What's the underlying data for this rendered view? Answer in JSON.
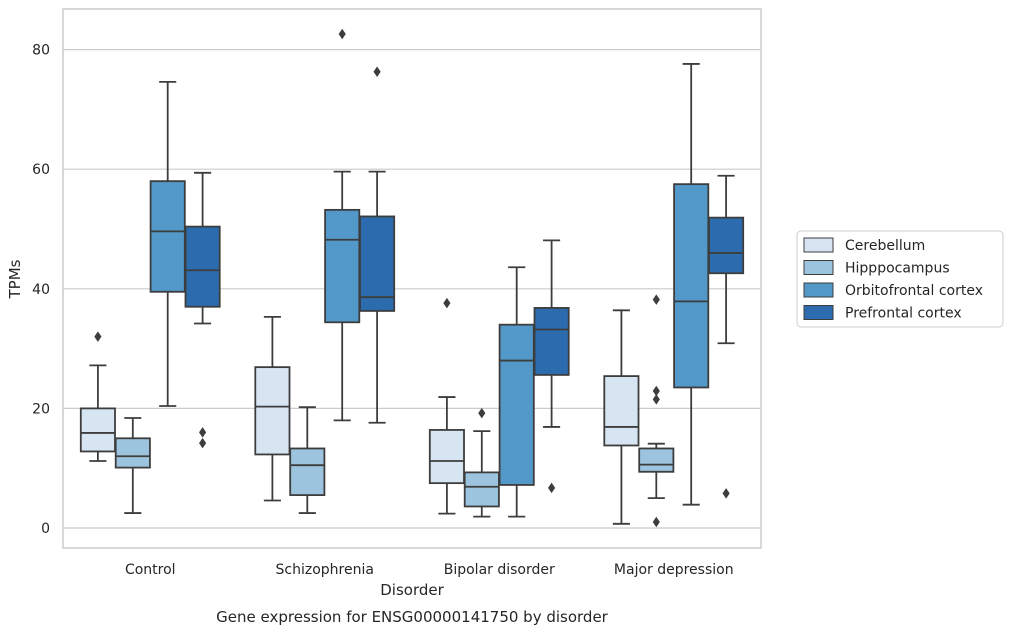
{
  "chart_data": {
    "type": "box",
    "xlabel": "Disorder",
    "ylabel": "TPMs",
    "caption": "Gene expression for ENSG00000141750 by disorder",
    "categories": [
      "Control",
      "Schizophrenia",
      "Bipolar disorder",
      "Major depression"
    ],
    "yticks": [
      "0",
      "20",
      "40",
      "60",
      "80"
    ],
    "ylim": [
      -3,
      87
    ],
    "grid": "horizontal",
    "legend_position": "center-right",
    "series": [
      {
        "name": "Cerebellum",
        "color": "#d7e5f3",
        "boxes": [
          {
            "whisker_low": 11.2,
            "q1": 12.8,
            "median": 15.9,
            "q3": 20.0,
            "whisker_high": 27.2,
            "outliers": [
              32.0
            ]
          },
          {
            "whisker_low": 4.6,
            "q1": 12.3,
            "median": 20.3,
            "q3": 26.9,
            "whisker_high": 35.3,
            "outliers": []
          },
          {
            "whisker_low": 2.4,
            "q1": 7.5,
            "median": 11.2,
            "q3": 16.4,
            "whisker_high": 21.9,
            "outliers": [
              37.6
            ]
          },
          {
            "whisker_low": 0.7,
            "q1": 13.8,
            "median": 16.9,
            "q3": 25.4,
            "whisker_high": 36.4,
            "outliers": []
          }
        ]
      },
      {
        "name": "Hipppocampus",
        "color": "#9cc4de",
        "boxes": [
          {
            "whisker_low": 2.5,
            "q1": 10.1,
            "median": 12.0,
            "q3": 15.0,
            "whisker_high": 18.4,
            "outliers": []
          },
          {
            "whisker_low": 2.5,
            "q1": 5.5,
            "median": 10.5,
            "q3": 13.3,
            "whisker_high": 20.2,
            "outliers": []
          },
          {
            "whisker_low": 1.9,
            "q1": 3.6,
            "median": 6.9,
            "q3": 9.3,
            "whisker_high": 16.2,
            "outliers": [
              19.2
            ]
          },
          {
            "whisker_low": 5.0,
            "q1": 9.4,
            "median": 10.6,
            "q3": 13.3,
            "whisker_high": 14.1,
            "outliers": [
              1.0,
              21.5,
              22.9,
              38.2
            ]
          }
        ]
      },
      {
        "name": "Orbitofrontal cortex",
        "color": "#5298c9",
        "boxes": [
          {
            "whisker_low": 20.4,
            "q1": 39.5,
            "median": 49.6,
            "q3": 58.0,
            "whisker_high": 74.6,
            "outliers": []
          },
          {
            "whisker_low": 18.0,
            "q1": 34.4,
            "median": 48.2,
            "q3": 53.2,
            "whisker_high": 59.6,
            "outliers": [
              82.6
            ]
          },
          {
            "whisker_low": 1.9,
            "q1": 7.2,
            "median": 28.0,
            "q3": 34.0,
            "whisker_high": 43.6,
            "outliers": []
          },
          {
            "whisker_low": 3.9,
            "q1": 23.5,
            "median": 37.9,
            "q3": 57.5,
            "whisker_high": 77.6,
            "outliers": []
          }
        ]
      },
      {
        "name": "Prefrontal cortex",
        "color": "#2c6cae",
        "boxes": [
          {
            "whisker_low": 34.2,
            "q1": 37.0,
            "median": 43.1,
            "q3": 50.4,
            "whisker_high": 59.4,
            "outliers": [
              14.2,
              16.0
            ]
          },
          {
            "whisker_low": 17.6,
            "q1": 36.3,
            "median": 38.6,
            "q3": 52.1,
            "whisker_high": 59.6,
            "outliers": [
              76.3
            ]
          },
          {
            "whisker_low": 16.9,
            "q1": 25.6,
            "median": 33.2,
            "q3": 36.8,
            "whisker_high": 48.1,
            "outliers": [
              6.7
            ]
          },
          {
            "whisker_low": 30.9,
            "q1": 42.6,
            "median": 46.0,
            "q3": 51.9,
            "whisker_high": 58.9,
            "outliers": [
              5.8
            ]
          }
        ]
      }
    ]
  }
}
